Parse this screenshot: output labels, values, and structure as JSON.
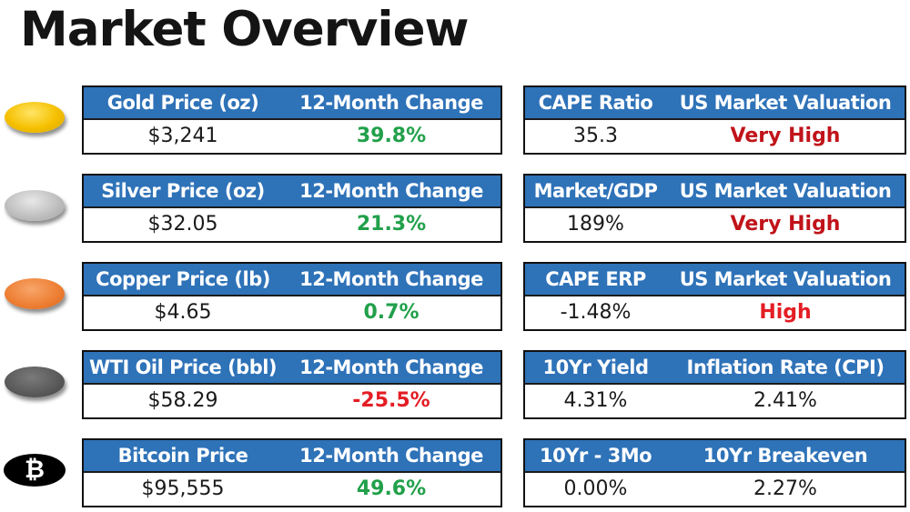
{
  "title": "Market Overview",
  "colors": {
    "header_bg": "#2e72b8",
    "positive": "#22a04b",
    "negative": "#e31e24",
    "valuation": "#c0141a",
    "gold": "#f5c000",
    "silver": "#bcbcbc",
    "copper": "#ed7d31",
    "oil": "#595959"
  },
  "commodities": [
    {
      "icon": "gold-coin-icon",
      "header": "Gold Price (oz)",
      "change_header": "12-Month Change",
      "value": "$3,241",
      "change": "39.8%",
      "direction": "positive"
    },
    {
      "icon": "silver-coin-icon",
      "header": "Silver Price (oz)",
      "change_header": "12-Month Change",
      "value": "$32.05",
      "change": "21.3%",
      "direction": "positive"
    },
    {
      "icon": "copper-coin-icon",
      "header": "Copper Price (lb)",
      "change_header": "12-Month Change",
      "value": "$4.65",
      "change": "0.7%",
      "direction": "positive"
    },
    {
      "icon": "oil-icon",
      "header": "WTI Oil Price (bbl)",
      "change_header": "12-Month Change",
      "value": "$58.29",
      "change": "-25.5%",
      "direction": "negative"
    },
    {
      "icon": "bitcoin-icon",
      "icon_glyph": "₿",
      "header": "Bitcoin Price",
      "change_header": "12-Month Change",
      "value": "$95,555",
      "change": "49.6%",
      "direction": "positive"
    }
  ],
  "indicators": [
    {
      "header_left": "CAPE Ratio",
      "header_right": "US Market Valuation",
      "value_left": "35.3",
      "value_right": "Very High",
      "right_style": "valuation"
    },
    {
      "header_left": "Market/GDP",
      "header_right": "US Market Valuation",
      "value_left": "189%",
      "value_right": "Very High",
      "right_style": "valuation"
    },
    {
      "header_left": "CAPE ERP",
      "header_right": "US Market Valuation",
      "value_left": "-1.48%",
      "value_right": "High",
      "right_style": "negative"
    },
    {
      "header_left": "10Yr Yield",
      "header_right": "Inflation Rate (CPI)",
      "value_left": "4.31%",
      "value_right": "2.41%",
      "right_style": "plain"
    },
    {
      "header_left": "10Yr - 3Mo",
      "header_right": "10Yr Breakeven",
      "value_left": "0.00%",
      "value_right": "2.27%",
      "right_style": "plain"
    }
  ]
}
